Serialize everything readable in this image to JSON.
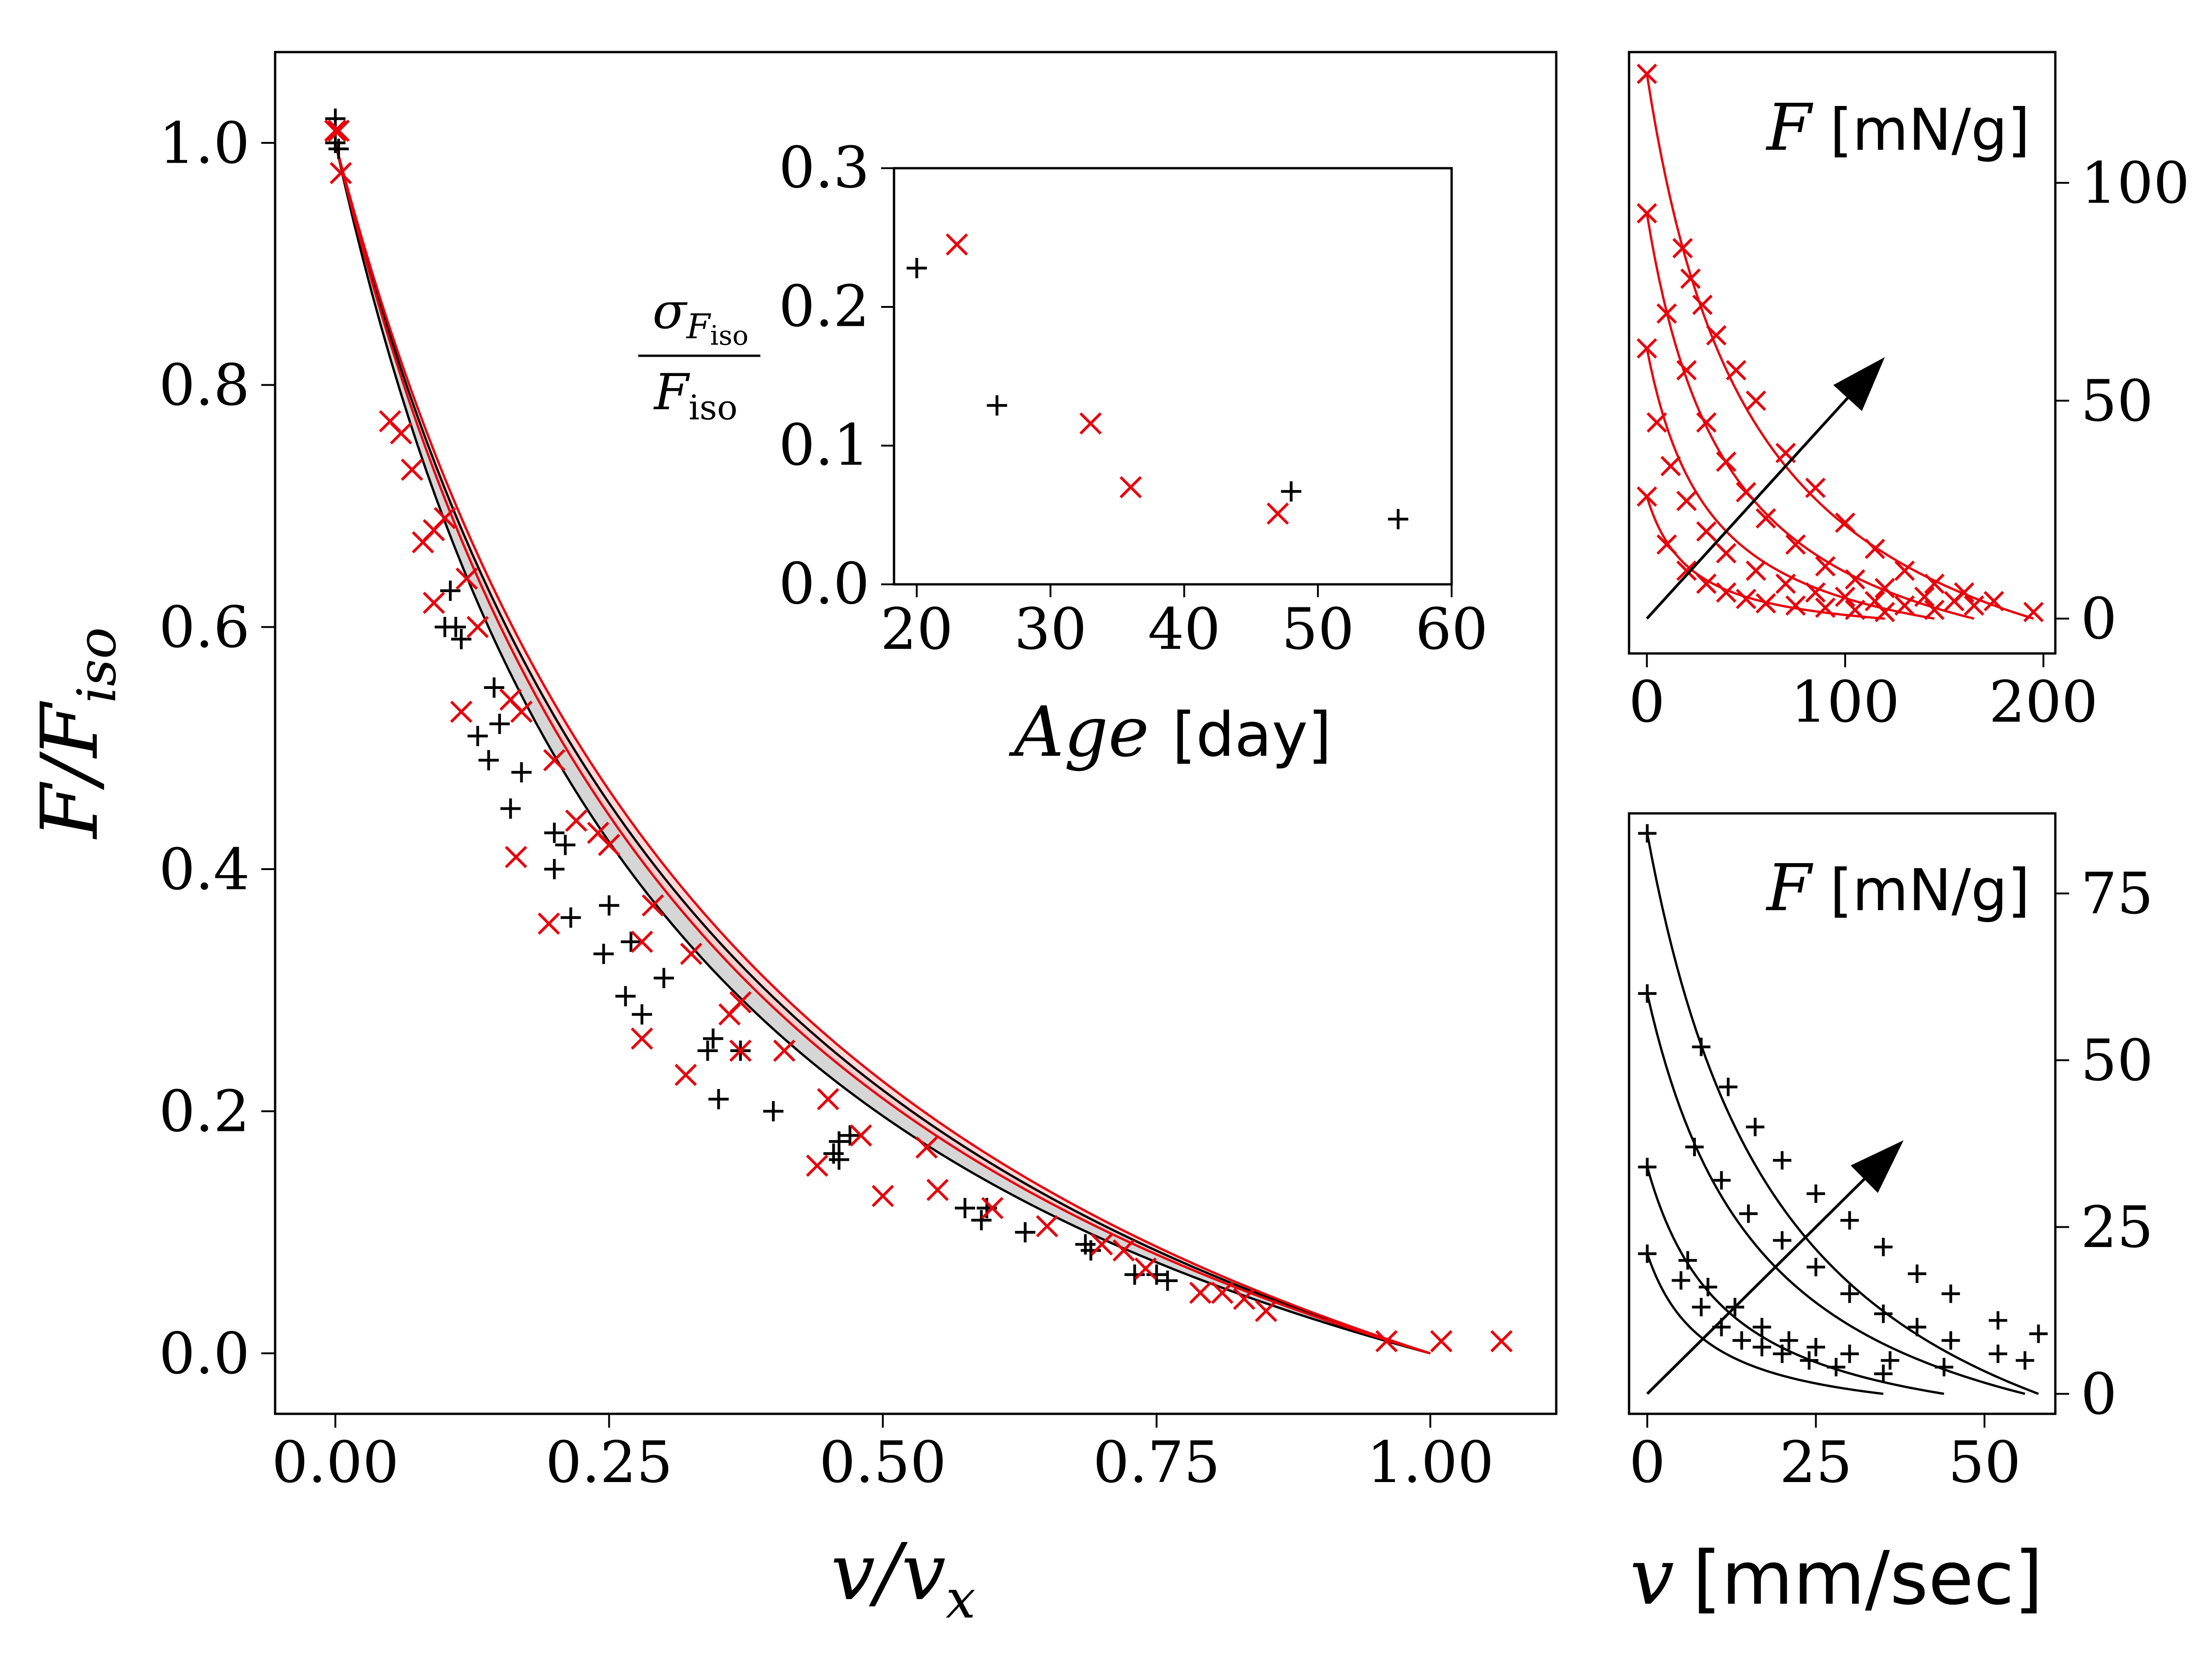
{
  "chart_data": [
    {
      "id": "main",
      "type": "scatter",
      "xlabel": "v/v_x",
      "ylabel": "F/F_iso",
      "xlim": [
        -0.055,
        1.115
      ],
      "ylim": [
        -0.05,
        1.075
      ],
      "xticks": [
        0.0,
        0.25,
        0.5,
        0.75,
        1.0
      ],
      "xtick_labels": [
        "0.00",
        "0.25",
        "0.50",
        "0.75",
        "1.00"
      ],
      "yticks": [
        0.0,
        0.2,
        0.4,
        0.6,
        0.8,
        1.0
      ],
      "ytick_labels": [
        "0.0",
        "0.2",
        "0.4",
        "0.6",
        "0.8",
        "1.0"
      ],
      "series": [
        {
          "name": "black (+)",
          "marker": "+",
          "color": "#000000",
          "points": [
            [
              0.0,
              1.02
            ],
            [
              0.0,
              1.0
            ],
            [
              0.003,
              0.995
            ],
            [
              0.1,
              0.6
            ],
            [
              0.105,
              0.63
            ],
            [
              0.11,
              0.6
            ],
            [
              0.115,
              0.59
            ],
            [
              0.13,
              0.51
            ],
            [
              0.14,
              0.49
            ],
            [
              0.145,
              0.55
            ],
            [
              0.15,
              0.52
            ],
            [
              0.16,
              0.45
            ],
            [
              0.17,
              0.48
            ],
            [
              0.2,
              0.43
            ],
            [
              0.2,
              0.4
            ],
            [
              0.21,
              0.42
            ],
            [
              0.215,
              0.36
            ],
            [
              0.245,
              0.33
            ],
            [
              0.25,
              0.37
            ],
            [
              0.265,
              0.295
            ],
            [
              0.27,
              0.34
            ],
            [
              0.28,
              0.28
            ],
            [
              0.3,
              0.31
            ],
            [
              0.34,
              0.25
            ],
            [
              0.345,
              0.26
            ],
            [
              0.35,
              0.21
            ],
            [
              0.37,
              0.25
            ],
            [
              0.4,
              0.2
            ],
            [
              0.455,
              0.165
            ],
            [
              0.46,
              0.175
            ],
            [
              0.46,
              0.16
            ],
            [
              0.47,
              0.18
            ],
            [
              0.575,
              0.12
            ],
            [
              0.59,
              0.11
            ],
            [
              0.595,
              0.12
            ],
            [
              0.63,
              0.1
            ],
            [
              0.685,
              0.09
            ],
            [
              0.69,
              0.085
            ],
            [
              0.73,
              0.065
            ],
            [
              0.75,
              0.065
            ],
            [
              0.76,
              0.06
            ]
          ]
        },
        {
          "name": "red (x)",
          "marker": "x",
          "color": "#e8000b",
          "points": [
            [
              0.0,
              1.01
            ],
            [
              0.003,
              1.01
            ],
            [
              0.005,
              0.975
            ],
            [
              0.05,
              0.77
            ],
            [
              0.06,
              0.76
            ],
            [
              0.07,
              0.73
            ],
            [
              0.08,
              0.67
            ],
            [
              0.09,
              0.62
            ],
            [
              0.09,
              0.68
            ],
            [
              0.1,
              0.69
            ],
            [
              0.12,
              0.64
            ],
            [
              0.115,
              0.53
            ],
            [
              0.13,
              0.6
            ],
            [
              0.16,
              0.54
            ],
            [
              0.17,
              0.53
            ],
            [
              0.165,
              0.41
            ],
            [
              0.2,
              0.49
            ],
            [
              0.195,
              0.355
            ],
            [
              0.22,
              0.44
            ],
            [
              0.24,
              0.43
            ],
            [
              0.25,
              0.42
            ],
            [
              0.28,
              0.26
            ],
            [
              0.28,
              0.34
            ],
            [
              0.29,
              0.37
            ],
            [
              0.32,
              0.23
            ],
            [
              0.325,
              0.33
            ],
            [
              0.36,
              0.28
            ],
            [
              0.37,
              0.29
            ],
            [
              0.37,
              0.25
            ],
            [
              0.41,
              0.25
            ],
            [
              0.44,
              0.155
            ],
            [
              0.45,
              0.21
            ],
            [
              0.48,
              0.18
            ],
            [
              0.5,
              0.13
            ],
            [
              0.54,
              0.17
            ],
            [
              0.55,
              0.135
            ],
            [
              0.6,
              0.12
            ],
            [
              0.65,
              0.105
            ],
            [
              0.7,
              0.09
            ],
            [
              0.72,
              0.085
            ],
            [
              0.74,
              0.07
            ],
            [
              0.79,
              0.05
            ],
            [
              0.81,
              0.05
            ],
            [
              0.83,
              0.045
            ],
            [
              0.85,
              0.035
            ],
            [
              0.96,
              0.01
            ],
            [
              1.01,
              0.01
            ],
            [
              1.065,
              0.01
            ]
          ]
        }
      ],
      "curves": [
        {
          "name": "black curve 1",
          "color": "#000000",
          "k": 2.6
        },
        {
          "name": "black curve 2",
          "color": "#000000",
          "k": 3.1
        },
        {
          "name": "red curve 1",
          "color": "#e8000b",
          "k": 2.45
        },
        {
          "name": "red curve 2",
          "color": "#e8000b",
          "k": 2.75
        }
      ],
      "bands": [
        {
          "name": "gray band",
          "color": "#cfcfcf",
          "k_low": 3.1,
          "k_high": 2.6
        },
        {
          "name": "red band",
          "color": "#ffcccc",
          "k_low": 2.75,
          "k_high": 2.45
        }
      ]
    },
    {
      "id": "inset",
      "type": "scatter",
      "xlabel": "Age",
      "xlabel_unit": "[day]",
      "ylabel": "σ_F_iso / F_iso",
      "xlim": [
        18.3,
        60
      ],
      "ylim": [
        0.0,
        0.3
      ],
      "xticks": [
        20,
        30,
        40,
        50,
        60
      ],
      "xtick_labels": [
        "20",
        "30",
        "40",
        "50",
        "60"
      ],
      "yticks": [
        0.0,
        0.1,
        0.2,
        0.3
      ],
      "ytick_labels": [
        "0.0",
        "0.1",
        "0.2",
        "0.3"
      ],
      "series": [
        {
          "name": "black (+)",
          "marker": "+",
          "color": "#000000",
          "points": [
            [
              20,
              0.228
            ],
            [
              26,
              0.129
            ],
            [
              48,
              0.067
            ],
            [
              56,
              0.047
            ]
          ]
        },
        {
          "name": "red (x)",
          "marker": "x",
          "color": "#e8000b",
          "points": [
            [
              23,
              0.245
            ],
            [
              33,
              0.116
            ],
            [
              36,
              0.07
            ],
            [
              47,
              0.051
            ]
          ]
        }
      ]
    },
    {
      "id": "top-right",
      "type": "line",
      "ylabel": "F",
      "ylabel_unit": "[mN/g]",
      "xlim": [
        -9,
        206
      ],
      "ylim": [
        -8,
        130
      ],
      "xticks": [
        0,
        100,
        200
      ],
      "xtick_labels": [
        "0",
        "100",
        "200"
      ],
      "yticks": [
        0,
        50,
        100
      ],
      "ytick_labels": [
        "0",
        "50",
        "100"
      ],
      "arrow": {
        "from": [
          0,
          0
        ],
        "to": [
          120,
          60
        ]
      },
      "series": [
        {
          "name": "curve 1",
          "marker": "x",
          "color": "#e8000b",
          "F0": 28,
          "vmax": 120,
          "k": 5.5,
          "points": [
            [
              0,
              28
            ],
            [
              10,
              17
            ],
            [
              20,
              11
            ],
            [
              30,
              8
            ],
            [
              40,
              6
            ],
            [
              50,
              4.5
            ],
            [
              60,
              3.5
            ],
            [
              75,
              3
            ],
            [
              90,
              2.5
            ],
            [
              105,
              2
            ],
            [
              120,
              1.5
            ]
          ]
        },
        {
          "name": "curve 2",
          "marker": "x",
          "color": "#e8000b",
          "F0": 62,
          "vmax": 145,
          "k": 4.5,
          "points": [
            [
              0,
              62
            ],
            [
              5,
              45
            ],
            [
              12,
              35
            ],
            [
              20,
              27
            ],
            [
              30,
              20
            ],
            [
              40,
              15
            ],
            [
              55,
              11
            ],
            [
              70,
              8
            ],
            [
              85,
              6
            ],
            [
              100,
              5
            ],
            [
              115,
              4
            ],
            [
              130,
              3
            ],
            [
              145,
              2
            ]
          ]
        },
        {
          "name": "curve 3",
          "marker": "x",
          "color": "#e8000b",
          "F0": 93,
          "vmax": 165,
          "k": 4.0,
          "points": [
            [
              0,
              93
            ],
            [
              10,
              70
            ],
            [
              20,
              57
            ],
            [
              30,
              45
            ],
            [
              40,
              36
            ],
            [
              50,
              29
            ],
            [
              60,
              23
            ],
            [
              75,
              17
            ],
            [
              90,
              12
            ],
            [
              105,
              9
            ],
            [
              120,
              7
            ],
            [
              140,
              5
            ],
            [
              155,
              4
            ],
            [
              165,
              3
            ]
          ]
        },
        {
          "name": "curve 4",
          "marker": "x",
          "color": "#e8000b",
          "F0": 125,
          "vmax": 195,
          "k": 3.6,
          "points": [
            [
              0,
              125
            ],
            [
              18,
              85
            ],
            [
              22,
              78
            ],
            [
              28,
              72
            ],
            [
              35,
              65
            ],
            [
              45,
              57
            ],
            [
              55,
              50
            ],
            [
              70,
              38
            ],
            [
              85,
              30
            ],
            [
              100,
              22
            ],
            [
              115,
              16
            ],
            [
              130,
              11
            ],
            [
              145,
              8
            ],
            [
              160,
              6
            ],
            [
              175,
              4
            ],
            [
              195,
              1.5
            ]
          ]
        }
      ]
    },
    {
      "id": "bottom-right",
      "type": "line",
      "ylabel": "F",
      "ylabel_unit": "[mN/g]",
      "xlabel": "v",
      "xlabel_unit": "[mm/sec]",
      "xlim": [
        -2.7,
        60.5
      ],
      "ylim": [
        -3,
        87
      ],
      "xticks": [
        0,
        25,
        50
      ],
      "xtick_labels": [
        "0",
        "25",
        "50"
      ],
      "yticks": [
        0,
        25,
        50,
        75
      ],
      "ytick_labels": [
        "0",
        "25",
        "50",
        "75"
      ],
      "arrow": {
        "from": [
          0,
          0
        ],
        "to": [
          38,
          38
        ]
      },
      "series": [
        {
          "name": "curve 1",
          "marker": "+",
          "color": "#000000",
          "F0": 21,
          "vmax": 35,
          "k": 4.0,
          "points": [
            [
              0,
              21
            ],
            [
              5,
              17
            ],
            [
              8,
              13
            ],
            [
              11,
              10
            ],
            [
              14,
              8
            ],
            [
              17,
              7
            ],
            [
              20,
              6
            ],
            [
              24,
              5
            ],
            [
              28,
              4
            ],
            [
              35,
              3
            ]
          ]
        },
        {
          "name": "curve 2",
          "marker": "+",
          "color": "#000000",
          "F0": 34,
          "vmax": 44,
          "k": 3.7,
          "points": [
            [
              0,
              34
            ],
            [
              6,
              20
            ],
            [
              9,
              16
            ],
            [
              13,
              13
            ],
            [
              17,
              10
            ],
            [
              21,
              8
            ],
            [
              25,
              7
            ],
            [
              30,
              6
            ],
            [
              36,
              5
            ],
            [
              44,
              4
            ]
          ]
        },
        {
          "name": "curve 3",
          "marker": "+",
          "color": "#000000",
          "F0": 60,
          "vmax": 56,
          "k": 3.2,
          "points": [
            [
              0,
              60
            ],
            [
              7,
              37
            ],
            [
              11,
              32
            ],
            [
              15,
              27
            ],
            [
              20,
              23
            ],
            [
              25,
              19
            ],
            [
              30,
              15
            ],
            [
              35,
              12
            ],
            [
              40,
              10
            ],
            [
              45,
              8
            ],
            [
              52,
              6
            ],
            [
              56,
              5
            ]
          ]
        },
        {
          "name": "curve 4",
          "marker": "+",
          "color": "#000000",
          "F0": 84,
          "vmax": 58,
          "k": 2.8,
          "points": [
            [
              0,
              84
            ],
            [
              8,
              52
            ],
            [
              12,
              46
            ],
            [
              16,
              40
            ],
            [
              20,
              35
            ],
            [
              25,
              30
            ],
            [
              30,
              26
            ],
            [
              35,
              22
            ],
            [
              40,
              18
            ],
            [
              45,
              15
            ],
            [
              52,
              11
            ],
            [
              58,
              9
            ]
          ]
        }
      ]
    }
  ],
  "labels": {
    "main_ylabel": "F/F",
    "main_ylabel_sub": "iso",
    "main_xlabel": "v/v",
    "main_xlabel_sub": "x",
    "inset_ylabel_num": "σ",
    "inset_ylabel_num_sub": "F",
    "inset_ylabel_num_subsub": "iso",
    "inset_ylabel_den": "F",
    "inset_ylabel_den_sub": "iso",
    "inset_xlabel": "Age",
    "inset_xlabel_unit": "[day]",
    "tr_ylabel": "F",
    "tr_unit": "[mN/g]",
    "br_ylabel": "F",
    "br_unit": "[mN/g]",
    "br_xlabel": "v",
    "br_xlabel_unit": "[mm/sec]"
  },
  "colors": {
    "red": "#e8000b",
    "black": "#000000",
    "red_band": "#ffcccc",
    "gray_band": "#cfcfcf"
  }
}
